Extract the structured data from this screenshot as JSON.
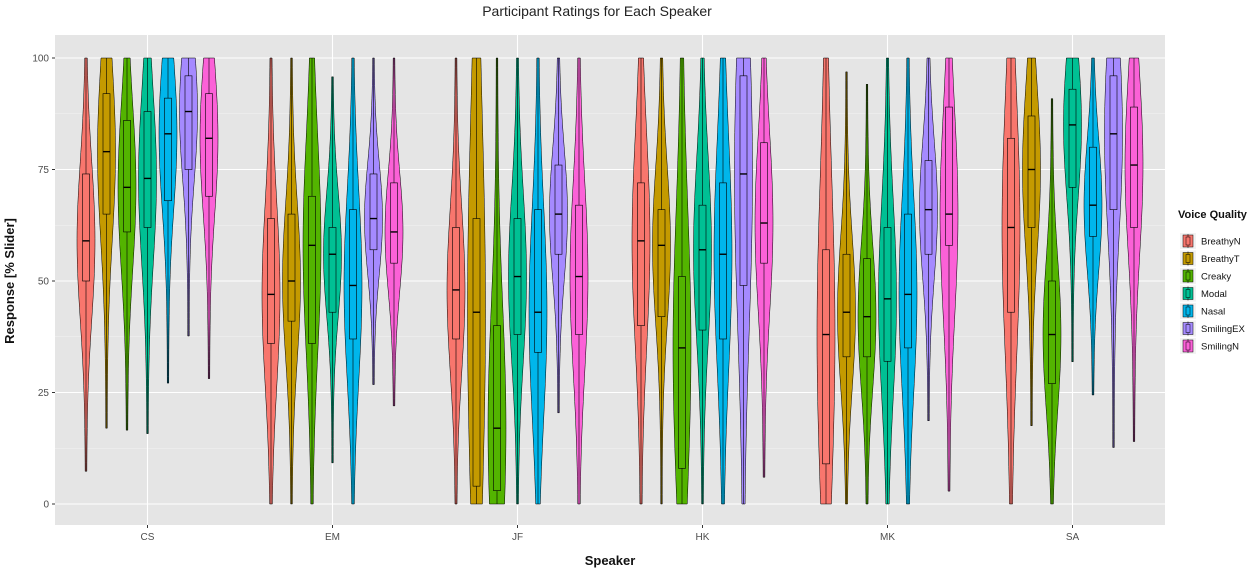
{
  "chart_data": {
    "type": "violin",
    "title": "Participant Ratings for Each Speaker",
    "xlabel": "Speaker",
    "ylabel": "Response [% Slider]",
    "ylim": [
      0,
      100
    ],
    "yticks": [
      0,
      25,
      50,
      75,
      100
    ],
    "grid": true,
    "legend_title": "Voice Quality",
    "legend_position": "right",
    "categories": [
      "CS",
      "EM",
      "JF",
      "HK",
      "MK",
      "SA"
    ],
    "series": [
      {
        "name": "BreathyN",
        "color": "#F8766D",
        "median": [
          59,
          47,
          48,
          59,
          38,
          62
        ],
        "q1": [
          50,
          36,
          37,
          40,
          9,
          43
        ],
        "q3": [
          74,
          64,
          62,
          72,
          57,
          82
        ]
      },
      {
        "name": "BreathyT",
        "color": "#C49A00",
        "median": [
          79,
          50,
          43,
          58,
          43,
          75
        ],
        "q1": [
          65,
          41,
          4,
          42,
          33,
          62
        ],
        "q3": [
          92,
          65,
          64,
          66,
          56,
          87
        ]
      },
      {
        "name": "Creaky",
        "color": "#53B400",
        "median": [
          71,
          58,
          17,
          35,
          42,
          38
        ],
        "q1": [
          61,
          36,
          3,
          8,
          33,
          27
        ],
        "q3": [
          86,
          69,
          40,
          51,
          55,
          50
        ]
      },
      {
        "name": "Modal",
        "color": "#00C094",
        "median": [
          73,
          56,
          51,
          57,
          46,
          85
        ],
        "q1": [
          62,
          43,
          38,
          39,
          32,
          71
        ],
        "q3": [
          88,
          62,
          64,
          67,
          62,
          93
        ]
      },
      {
        "name": "Nasal",
        "color": "#00B6EB",
        "median": [
          83,
          49,
          43,
          56,
          47,
          67
        ],
        "q1": [
          68,
          37,
          34,
          37,
          35,
          60
        ],
        "q3": [
          91,
          66,
          66,
          72,
          65,
          80
        ]
      },
      {
        "name": "SmilingEX",
        "color": "#A58AFF",
        "median": [
          88,
          64,
          65,
          74,
          66,
          83
        ],
        "q1": [
          75,
          57,
          56,
          49,
          56,
          66
        ],
        "q3": [
          96,
          74,
          76,
          96,
          77,
          96
        ]
      },
      {
        "name": "SmilingN",
        "color": "#FB61D7",
        "median": [
          82,
          61,
          51,
          63,
          65,
          76
        ],
        "q1": [
          69,
          54,
          38,
          54,
          58,
          62
        ],
        "q3": [
          92,
          72,
          67,
          81,
          89,
          89
        ]
      }
    ]
  }
}
